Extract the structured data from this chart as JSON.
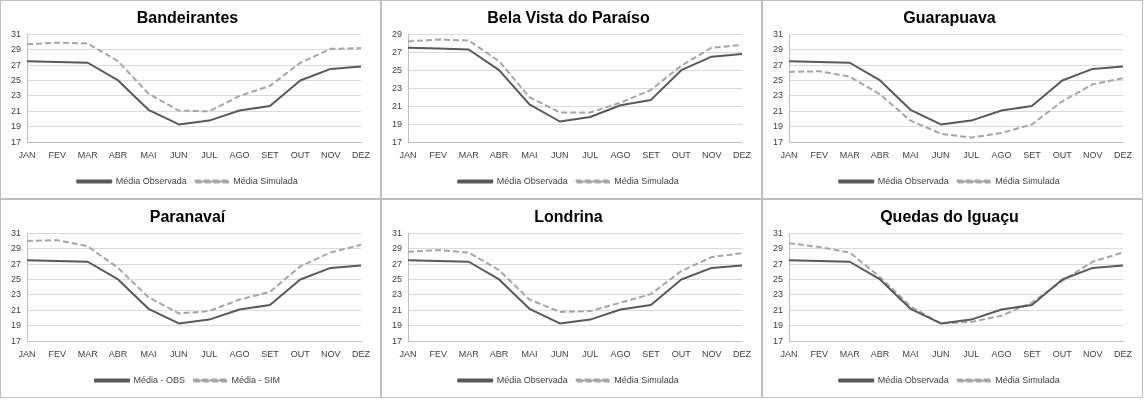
{
  "chart_data": [
    {
      "type": "line",
      "title": "Bandeirantes",
      "categories": [
        "JAN",
        "FEV",
        "MAR",
        "ABR",
        "MAI",
        "JUN",
        "JUL",
        "AGO",
        "SET",
        "OUT",
        "NOV",
        "DEZ"
      ],
      "ylim": [
        17,
        31
      ],
      "yticks": [
        17,
        19,
        21,
        23,
        25,
        27,
        29,
        31
      ],
      "grid": "y",
      "legend": "bottom",
      "marker": "none",
      "series": [
        {
          "name": "Média Observada",
          "color": "#595959",
          "line_style": "solid",
          "values": [
            27.5,
            27.4,
            27.3,
            25.0,
            21.2,
            19.3,
            19.8,
            21.1,
            21.7,
            25.0,
            26.5,
            26.8
          ]
        },
        {
          "name": "Média Simulada",
          "color": "#a6a6a6",
          "line_style": "dashed",
          "values": [
            29.7,
            29.9,
            29.8,
            27.5,
            23.3,
            21.1,
            21.0,
            23.0,
            24.3,
            27.3,
            29.1,
            29.2
          ]
        }
      ]
    },
    {
      "type": "line",
      "title": "Bela Vista do Paraíso",
      "categories": [
        "JAN",
        "FEV",
        "MAR",
        "ABR",
        "MAI",
        "JUN",
        "JUL",
        "AGO",
        "SET",
        "OUT",
        "NOV",
        "DEZ"
      ],
      "ylim": [
        17,
        29
      ],
      "yticks": [
        17,
        19,
        21,
        23,
        25,
        27,
        29
      ],
      "grid": "y",
      "legend": "bottom",
      "marker": "none",
      "series": [
        {
          "name": "Média Observada",
          "color": "#595959",
          "line_style": "solid",
          "values": [
            27.5,
            27.4,
            27.3,
            25.0,
            21.2,
            19.3,
            19.8,
            21.1,
            21.7,
            25.0,
            26.5,
            26.8
          ]
        },
        {
          "name": "Média Simulada",
          "color": "#a6a6a6",
          "line_style": "dashed",
          "values": [
            28.2,
            28.4,
            28.3,
            26.0,
            22.0,
            20.3,
            20.3,
            21.4,
            22.8,
            25.5,
            27.5,
            27.8
          ]
        }
      ]
    },
    {
      "type": "line",
      "title": "Guarapuava",
      "categories": [
        "JAN",
        "FEV",
        "MAR",
        "ABR",
        "MAI",
        "JUN",
        "JUL",
        "AGO",
        "SET",
        "OUT",
        "NOV",
        "DEZ"
      ],
      "ylim": [
        17,
        31
      ],
      "yticks": [
        17,
        19,
        21,
        23,
        25,
        27,
        29,
        31
      ],
      "grid": "y",
      "legend": "bottom",
      "marker": "none",
      "series": [
        {
          "name": "Média Observada",
          "color": "#595959",
          "line_style": "solid",
          "values": [
            27.5,
            27.4,
            27.3,
            25.0,
            21.2,
            19.3,
            19.8,
            21.1,
            21.7,
            25.0,
            26.5,
            26.8
          ]
        },
        {
          "name": "Média Simulada",
          "color": "#a6a6a6",
          "line_style": "dashed",
          "values": [
            26.1,
            26.2,
            25.5,
            23.2,
            19.8,
            18.1,
            17.6,
            18.2,
            19.3,
            22.3,
            24.5,
            25.3
          ]
        }
      ]
    },
    {
      "type": "line",
      "title": "Paranavaí",
      "categories": [
        "JAN",
        "FEV",
        "MAR",
        "ABR",
        "MAI",
        "JUN",
        "JUL",
        "AGO",
        "SET",
        "OUT",
        "NOV",
        "DEZ"
      ],
      "ylim": [
        17,
        31
      ],
      "yticks": [
        17,
        19,
        21,
        23,
        25,
        27,
        29,
        31
      ],
      "grid": "y",
      "legend": "bottom",
      "marker": "none",
      "series": [
        {
          "name": "Média - OBS",
          "color": "#595959",
          "line_style": "solid",
          "values": [
            27.5,
            27.4,
            27.3,
            25.0,
            21.2,
            19.3,
            19.8,
            21.1,
            21.7,
            25.0,
            26.5,
            26.8
          ]
        },
        {
          "name": "Média - SIM",
          "color": "#a6a6a6",
          "line_style": "dashed",
          "values": [
            30.0,
            30.1,
            29.3,
            26.5,
            22.7,
            20.6,
            20.9,
            22.4,
            23.4,
            26.7,
            28.5,
            29.5
          ]
        }
      ]
    },
    {
      "type": "line",
      "title": "Londrina",
      "categories": [
        "JAN",
        "FEV",
        "MAR",
        "ABR",
        "MAI",
        "JUN",
        "JUL",
        "AGO",
        "SET",
        "OUT",
        "NOV",
        "DEZ"
      ],
      "ylim": [
        17,
        31
      ],
      "yticks": [
        17,
        19,
        21,
        23,
        25,
        27,
        29,
        31
      ],
      "grid": "y",
      "legend": "bottom",
      "marker": "none",
      "series": [
        {
          "name": "Média Observada",
          "color": "#595959",
          "line_style": "solid",
          "values": [
            27.5,
            27.4,
            27.3,
            25.0,
            21.2,
            19.3,
            19.8,
            21.1,
            21.7,
            25.0,
            26.5,
            26.8
          ]
        },
        {
          "name": "Média Simulada",
          "color": "#a6a6a6",
          "line_style": "dashed",
          "values": [
            28.6,
            28.8,
            28.5,
            26.2,
            22.4,
            20.8,
            20.9,
            22.0,
            23.1,
            26.1,
            27.9,
            28.4
          ]
        }
      ]
    },
    {
      "type": "line",
      "title": "Quedas do Iguaçu",
      "categories": [
        "JAN",
        "FEV",
        "MAR",
        "ABR",
        "MAI",
        "JUN",
        "JUL",
        "AGO",
        "SET",
        "OUT",
        "NOV",
        "DEZ"
      ],
      "ylim": [
        17,
        31
      ],
      "yticks": [
        17,
        19,
        21,
        23,
        25,
        27,
        29,
        31
      ],
      "grid": "y",
      "legend": "bottom",
      "marker": "none",
      "series": [
        {
          "name": "Média Observada",
          "color": "#595959",
          "line_style": "solid",
          "values": [
            27.5,
            27.4,
            27.3,
            25.0,
            21.2,
            19.3,
            19.8,
            21.1,
            21.7,
            25.0,
            26.5,
            26.8
          ]
        },
        {
          "name": "Média Simulada",
          "color": "#a6a6a6",
          "line_style": "dashed",
          "values": [
            29.7,
            29.2,
            28.5,
            25.3,
            21.5,
            19.3,
            19.5,
            20.3,
            22.0,
            24.8,
            27.3,
            28.5
          ]
        }
      ]
    }
  ]
}
